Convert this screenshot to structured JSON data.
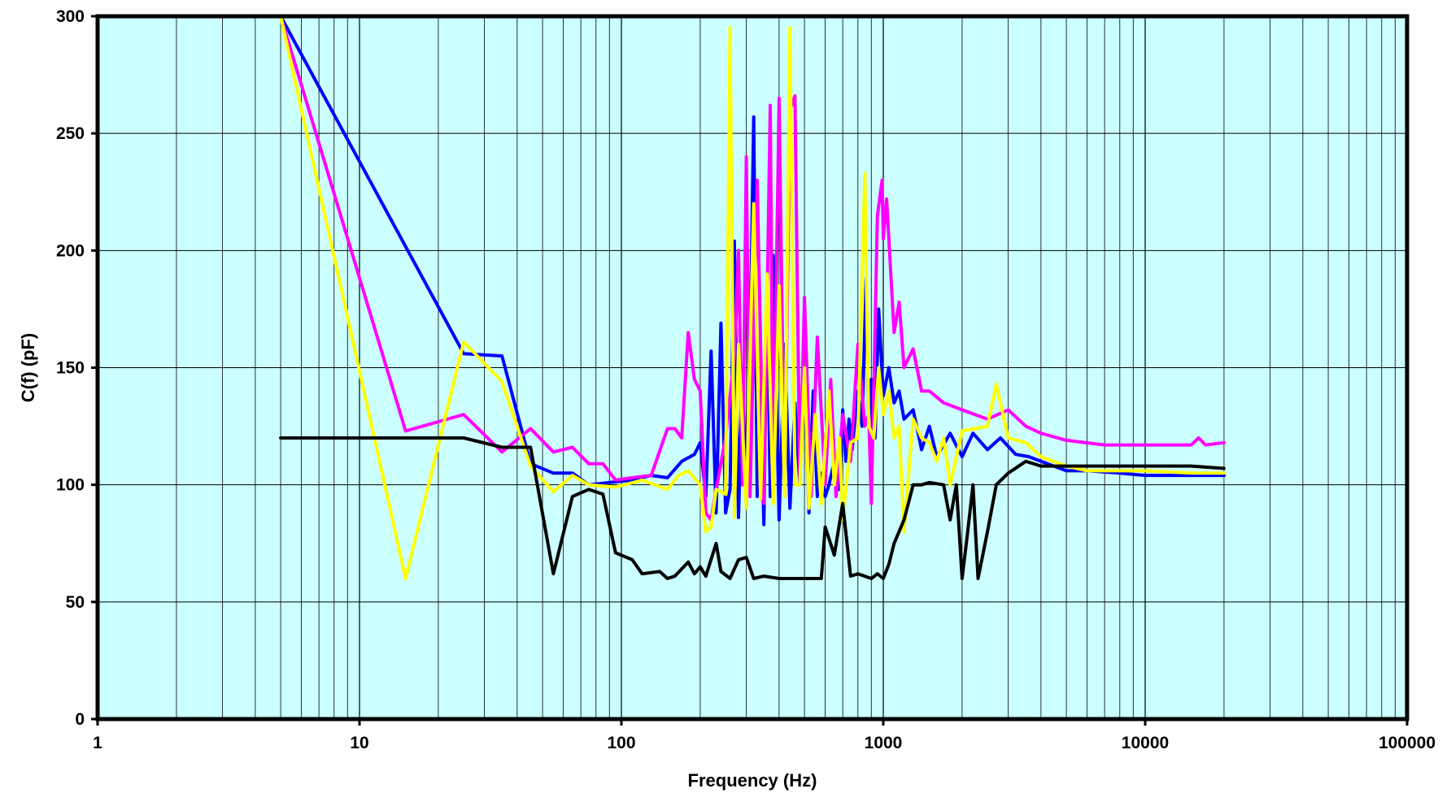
{
  "chart_data": {
    "type": "line",
    "title": "",
    "xlabel": "Frequency (Hz)",
    "ylabel": "C(f) (pF)",
    "xscale": "log",
    "xlim": [
      1,
      100000
    ],
    "ylim": [
      0,
      300
    ],
    "x_ticks": [
      1,
      10,
      100,
      1000,
      10000,
      100000
    ],
    "x_tick_labels": [
      "1",
      "10",
      "100",
      "1000",
      "10000",
      "100000"
    ],
    "y_ticks": [
      0,
      50,
      100,
      150,
      200,
      250,
      300
    ],
    "y_tick_labels": [
      "0",
      "50",
      "100",
      "150",
      "200",
      "250",
      "300"
    ],
    "grid": true,
    "plot_background": "#ccffff",
    "legend": "none",
    "series": [
      {
        "color": "#0000ff",
        "points": [
          [
            5,
            300
          ],
          [
            25,
            156
          ],
          [
            35,
            155
          ],
          [
            45,
            109
          ],
          [
            55,
            105
          ],
          [
            65,
            105
          ],
          [
            75,
            100
          ],
          [
            90,
            101
          ],
          [
            110,
            102
          ],
          [
            130,
            104
          ],
          [
            150,
            103
          ],
          [
            170,
            110
          ],
          [
            190,
            113
          ],
          [
            200,
            118
          ],
          [
            210,
            95
          ],
          [
            220,
            157
          ],
          [
            230,
            88
          ],
          [
            240,
            169
          ],
          [
            250,
            88
          ],
          [
            260,
            98
          ],
          [
            270,
            204
          ],
          [
            280,
            86
          ],
          [
            290,
            150
          ],
          [
            300,
            90
          ],
          [
            310,
            160
          ],
          [
            320,
            257
          ],
          [
            330,
            95
          ],
          [
            340,
            140
          ],
          [
            350,
            83
          ],
          [
            360,
            185
          ],
          [
            370,
            95
          ],
          [
            380,
            198
          ],
          [
            400,
            85
          ],
          [
            420,
            160
          ],
          [
            440,
            90
          ],
          [
            460,
            135
          ],
          [
            480,
            100
          ],
          [
            500,
            150
          ],
          [
            520,
            88
          ],
          [
            540,
            140
          ],
          [
            560,
            95
          ],
          [
            580,
            105
          ],
          [
            600,
            95
          ],
          [
            620,
            100
          ],
          [
            650,
            110
          ],
          [
            680,
            98
          ],
          [
            700,
            132
          ],
          [
            720,
            110
          ],
          [
            740,
            128
          ],
          [
            760,
            115
          ],
          [
            800,
            140
          ],
          [
            830,
            125
          ],
          [
            860,
            188
          ],
          [
            880,
            125
          ],
          [
            900,
            145
          ],
          [
            930,
            120
          ],
          [
            960,
            175
          ],
          [
            1000,
            138
          ],
          [
            1050,
            150
          ],
          [
            1100,
            135
          ],
          [
            1150,
            140
          ],
          [
            1200,
            128
          ],
          [
            1300,
            132
          ],
          [
            1400,
            115
          ],
          [
            1500,
            125
          ],
          [
            1600,
            112
          ],
          [
            1800,
            122
          ],
          [
            2000,
            112
          ],
          [
            2200,
            122
          ],
          [
            2500,
            115
          ],
          [
            2800,
            120
          ],
          [
            3200,
            113
          ],
          [
            3600,
            112
          ],
          [
            4000,
            110
          ],
          [
            5000,
            106
          ],
          [
            6000,
            106
          ],
          [
            8000,
            105
          ],
          [
            10000,
            104
          ],
          [
            15000,
            104
          ],
          [
            20000,
            104
          ]
        ]
      },
      {
        "color": "#ff00ff",
        "points": [
          [
            5,
            300
          ],
          [
            15,
            123
          ],
          [
            25,
            130
          ],
          [
            35,
            114
          ],
          [
            45,
            124
          ],
          [
            55,
            114
          ],
          [
            65,
            116
          ],
          [
            75,
            109
          ],
          [
            85,
            109
          ],
          [
            95,
            102
          ],
          [
            110,
            103
          ],
          [
            130,
            104
          ],
          [
            150,
            124
          ],
          [
            160,
            124
          ],
          [
            170,
            120
          ],
          [
            180,
            165
          ],
          [
            190,
            145
          ],
          [
            200,
            140
          ],
          [
            210,
            88
          ],
          [
            220,
            85
          ],
          [
            230,
            98
          ],
          [
            250,
            120
          ],
          [
            270,
            155
          ],
          [
            280,
            200
          ],
          [
            290,
            100
          ],
          [
            300,
            240
          ],
          [
            310,
            95
          ],
          [
            330,
            230
          ],
          [
            350,
            92
          ],
          [
            370,
            262
          ],
          [
            380,
            100
          ],
          [
            400,
            265
          ],
          [
            420,
            95
          ],
          [
            440,
            260
          ],
          [
            460,
            266
          ],
          [
            480,
            100
          ],
          [
            500,
            180
          ],
          [
            530,
            95
          ],
          [
            560,
            163
          ],
          [
            600,
            100
          ],
          [
            630,
            145
          ],
          [
            660,
            95
          ],
          [
            700,
            130
          ],
          [
            750,
            110
          ],
          [
            800,
            160
          ],
          [
            850,
            125
          ],
          [
            880,
            130
          ],
          [
            900,
            92
          ],
          [
            950,
            215
          ],
          [
            990,
            230
          ],
          [
            1000,
            205
          ],
          [
            1030,
            222
          ],
          [
            1100,
            165
          ],
          [
            1150,
            178
          ],
          [
            1200,
            150
          ],
          [
            1300,
            158
          ],
          [
            1400,
            140
          ],
          [
            1500,
            140
          ],
          [
            1700,
            135
          ],
          [
            2000,
            132
          ],
          [
            2500,
            128
          ],
          [
            3000,
            132
          ],
          [
            3500,
            125
          ],
          [
            4000,
            122
          ],
          [
            5000,
            119
          ],
          [
            7000,
            117
          ],
          [
            10000,
            117
          ],
          [
            15000,
            117
          ],
          [
            16000,
            120
          ],
          [
            17000,
            117
          ],
          [
            20000,
            118
          ]
        ]
      },
      {
        "color": "#ffff00",
        "points": [
          [
            5,
            300
          ],
          [
            15,
            60
          ],
          [
            25,
            161
          ],
          [
            35,
            144
          ],
          [
            45,
            108
          ],
          [
            55,
            97
          ],
          [
            65,
            104
          ],
          [
            75,
            100
          ],
          [
            95,
            99
          ],
          [
            120,
            102
          ],
          [
            150,
            98
          ],
          [
            165,
            104
          ],
          [
            180,
            106
          ],
          [
            200,
            100
          ],
          [
            210,
            80
          ],
          [
            220,
            82
          ],
          [
            230,
            98
          ],
          [
            250,
            96
          ],
          [
            260,
            295
          ],
          [
            270,
            86
          ],
          [
            280,
            160
          ],
          [
            300,
            90
          ],
          [
            320,
            220
          ],
          [
            340,
            94
          ],
          [
            360,
            190
          ],
          [
            380,
            92
          ],
          [
            400,
            185
          ],
          [
            420,
            95
          ],
          [
            440,
            295
          ],
          [
            460,
            100
          ],
          [
            480,
            100
          ],
          [
            500,
            150
          ],
          [
            520,
            90
          ],
          [
            550,
            130
          ],
          [
            580,
            92
          ],
          [
            620,
            140
          ],
          [
            650,
            100
          ],
          [
            680,
            120
          ],
          [
            700,
            85
          ],
          [
            750,
            118
          ],
          [
            800,
            120
          ],
          [
            850,
            233
          ],
          [
            880,
            125
          ],
          [
            920,
            120
          ],
          [
            960,
            150
          ],
          [
            1000,
            130
          ],
          [
            1050,
            140
          ],
          [
            1100,
            120
          ],
          [
            1150,
            125
          ],
          [
            1200,
            80
          ],
          [
            1300,
            128
          ],
          [
            1400,
            120
          ],
          [
            1500,
            118
          ],
          [
            1600,
            110
          ],
          [
            1700,
            120
          ],
          [
            1800,
            100
          ],
          [
            2000,
            123
          ],
          [
            2500,
            125
          ],
          [
            2700,
            143
          ],
          [
            3000,
            120
          ],
          [
            3500,
            118
          ],
          [
            4000,
            112
          ],
          [
            5000,
            108
          ],
          [
            6000,
            106
          ],
          [
            8000,
            106
          ],
          [
            10000,
            106
          ],
          [
            15000,
            105
          ],
          [
            20000,
            105
          ]
        ]
      },
      {
        "color": "#000000",
        "points": [
          [
            5,
            120
          ],
          [
            25,
            120
          ],
          [
            35,
            116
          ],
          [
            45,
            116
          ],
          [
            55,
            62
          ],
          [
            65,
            95
          ],
          [
            75,
            98
          ],
          [
            85,
            96
          ],
          [
            95,
            71
          ],
          [
            110,
            68
          ],
          [
            120,
            62
          ],
          [
            140,
            63
          ],
          [
            150,
            60
          ],
          [
            160,
            61
          ],
          [
            180,
            67
          ],
          [
            190,
            62
          ],
          [
            200,
            65
          ],
          [
            210,
            61
          ],
          [
            230,
            75
          ],
          [
            240,
            63
          ],
          [
            260,
            60
          ],
          [
            280,
            68
          ],
          [
            300,
            69
          ],
          [
            320,
            60
          ],
          [
            350,
            61
          ],
          [
            400,
            60
          ],
          [
            500,
            60
          ],
          [
            580,
            60
          ],
          [
            600,
            82
          ],
          [
            650,
            70
          ],
          [
            700,
            92
          ],
          [
            750,
            61
          ],
          [
            800,
            62
          ],
          [
            900,
            60
          ],
          [
            950,
            62
          ],
          [
            1000,
            60
          ],
          [
            1050,
            66
          ],
          [
            1100,
            75
          ],
          [
            1200,
            85
          ],
          [
            1300,
            100
          ],
          [
            1400,
            100
          ],
          [
            1500,
            101
          ],
          [
            1700,
            100
          ],
          [
            1800,
            85
          ],
          [
            1900,
            100
          ],
          [
            2000,
            60
          ],
          [
            2100,
            80
          ],
          [
            2200,
            100
          ],
          [
            2300,
            60
          ],
          [
            2500,
            80
          ],
          [
            2700,
            100
          ],
          [
            3000,
            105
          ],
          [
            3500,
            110
          ],
          [
            4000,
            108
          ],
          [
            5000,
            108
          ],
          [
            7000,
            108
          ],
          [
            10000,
            108
          ],
          [
            15000,
            108
          ],
          [
            20000,
            107
          ]
        ]
      }
    ]
  }
}
